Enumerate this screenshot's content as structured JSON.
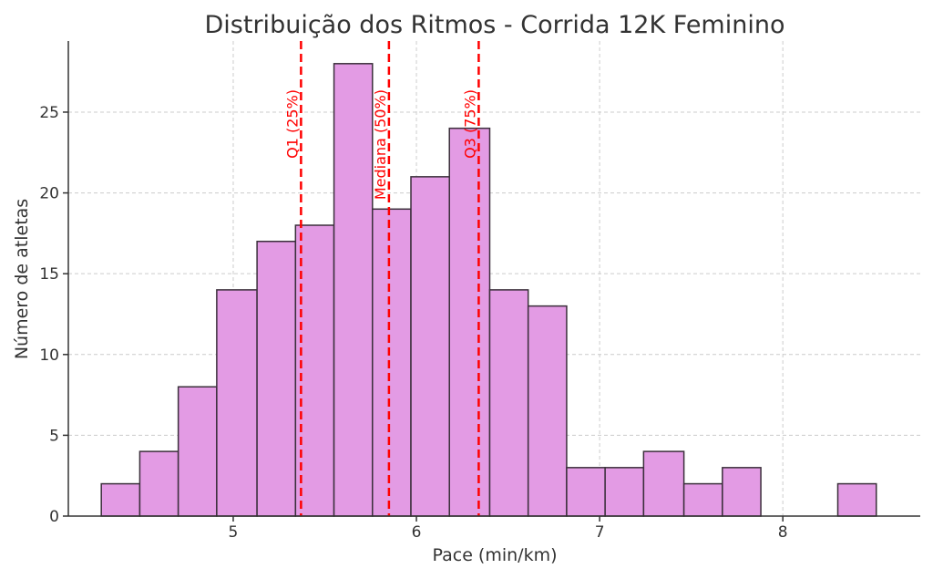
{
  "chart_data": {
    "type": "bar",
    "title": "Distribuição dos Ritmos - Corrida 12K Feminino",
    "xlabel": "Pace (min/km)",
    "ylabel": "Número de atletas",
    "xlim": [
      4.1,
      8.75
    ],
    "ylim": [
      0,
      29.4
    ],
    "xticks": [
      5,
      6,
      7,
      8
    ],
    "yticks": [
      0,
      5,
      10,
      15,
      20,
      25
    ],
    "grid": true,
    "bin_edges": [
      4.28,
      4.49,
      4.7,
      4.91,
      5.13,
      5.34,
      5.55,
      5.76,
      5.97,
      6.18,
      6.4,
      6.61,
      6.82,
      7.03,
      7.24,
      7.46,
      7.67,
      7.88,
      8.09,
      8.3,
      8.51
    ],
    "values": [
      2,
      4,
      8,
      14,
      17,
      18,
      28,
      19,
      21,
      24,
      14,
      13,
      3,
      3,
      4,
      2,
      3,
      0,
      0,
      2
    ],
    "quartiles": [
      {
        "label": "Q1 (25%)",
        "value": 5.37
      },
      {
        "label": "Mediana (50%)",
        "value": 5.85
      },
      {
        "label": "Q3 (75%)",
        "value": 6.34
      }
    ],
    "colors": {
      "bar": "#e39be4",
      "edge": "#3b2f3b",
      "quartile": "#ff0000"
    }
  }
}
